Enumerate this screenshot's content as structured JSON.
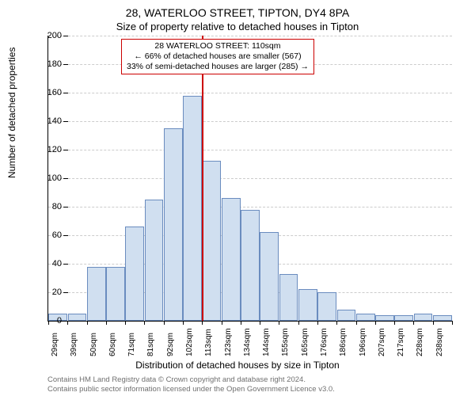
{
  "title_main": "28, WATERLOO STREET, TIPTON, DY4 8PA",
  "title_sub": "Size of property relative to detached houses in Tipton",
  "y_axis_title": "Number of detached properties",
  "x_axis_title": "Distribution of detached houses by size in Tipton",
  "footer_line1": "Contains HM Land Registry data © Crown copyright and database right 2024.",
  "footer_line2": "Contains public sector information licensed under the Open Government Licence v3.0.",
  "chart": {
    "type": "histogram",
    "ylim": [
      0,
      200
    ],
    "ytick_step": 20,
    "yticks": [
      0,
      20,
      40,
      60,
      80,
      100,
      120,
      140,
      160,
      180,
      200
    ],
    "bar_fill": "#d0dff0",
    "bar_stroke": "#6a8cbf",
    "grid_color": "#cccccc",
    "background_color": "#ffffff",
    "marker_color": "#cc0000",
    "marker_x_index": 8,
    "x_labels": [
      "29sqm",
      "39sqm",
      "50sqm",
      "60sqm",
      "71sqm",
      "81sqm",
      "92sqm",
      "102sqm",
      "113sqm",
      "123sqm",
      "134sqm",
      "144sqm",
      "155sqm",
      "165sqm",
      "176sqm",
      "186sqm",
      "196sqm",
      "207sqm",
      "217sqm",
      "228sqm",
      "238sqm"
    ],
    "values": [
      5,
      5,
      38,
      38,
      66,
      85,
      135,
      158,
      112,
      86,
      78,
      62,
      33,
      22,
      20,
      8,
      5,
      4,
      4,
      5,
      4
    ]
  },
  "annotation": {
    "line1": "28 WATERLOO STREET: 110sqm",
    "line2": "← 66% of detached houses are smaller (567)",
    "line3": "33% of semi-detached houses are larger (285) →"
  }
}
